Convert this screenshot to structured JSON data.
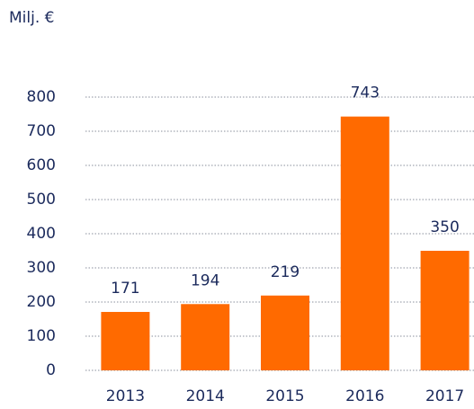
{
  "chart_data": {
    "type": "bar",
    "title": "Milj. €",
    "categories": [
      "2013",
      "2014",
      "2015",
      "2016",
      "2017"
    ],
    "values": [
      171,
      194,
      219,
      743,
      350
    ],
    "color": "#ff6a00",
    "ylim": [
      0,
      800
    ],
    "yticks": [
      0,
      100,
      200,
      300,
      400,
      500,
      600,
      700,
      800
    ],
    "grid": true
  }
}
